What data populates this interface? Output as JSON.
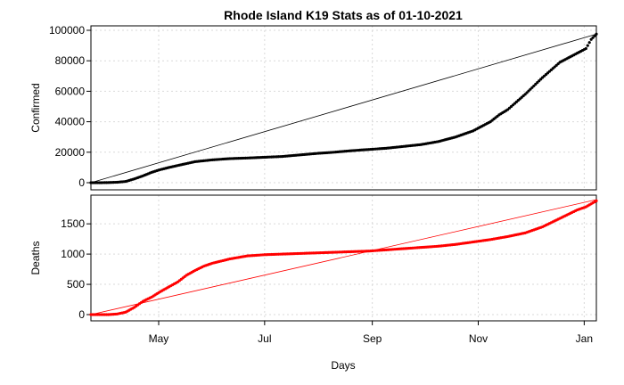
{
  "title": "Rhode Island K19 Stats as of 01-10-2021",
  "xlabel": "Days",
  "chart_data": {
    "type": "scatter",
    "title": "Rhode Island K19 Stats as of 01-10-2021",
    "xlabel": "Days",
    "x_ticks": [
      {
        "label": "May",
        "day": 39
      },
      {
        "label": "Jul",
        "day": 100
      },
      {
        "label": "Sep",
        "day": 162
      },
      {
        "label": "Nov",
        "day": 223
      },
      {
        "label": "Jan",
        "day": 284
      }
    ],
    "xlim": [
      0,
      291
    ],
    "panels": [
      {
        "ylabel": "Confirmed",
        "ylim": [
          0,
          100000
        ],
        "y_ticks": [
          0,
          20000,
          40000,
          60000,
          80000,
          100000
        ],
        "color": "#000000",
        "trend_line": {
          "from": [
            0,
            0
          ],
          "to": [
            291,
            97500
          ]
        },
        "series": {
          "name": "Confirmed",
          "x": [
            0,
            5,
            10,
            15,
            20,
            25,
            30,
            35,
            40,
            45,
            50,
            60,
            70,
            80,
            90,
            100,
            110,
            120,
            130,
            140,
            150,
            160,
            170,
            180,
            190,
            200,
            210,
            215,
            220,
            225,
            230,
            235,
            240,
            245,
            250,
            255,
            260,
            265,
            270,
            275,
            280,
            285,
            288,
            291
          ],
          "y": [
            0,
            0,
            100,
            300,
            800,
            2500,
            4500,
            6800,
            8600,
            10000,
            11300,
            13800,
            15000,
            15800,
            16200,
            16700,
            17200,
            18200,
            19200,
            20000,
            21000,
            21800,
            22600,
            23800,
            25000,
            27000,
            30000,
            32000,
            34000,
            37000,
            40000,
            44500,
            48000,
            53000,
            58000,
            63500,
            69000,
            74000,
            79000,
            82000,
            85000,
            88000,
            94000,
            97500
          ]
        }
      },
      {
        "ylabel": "Deaths",
        "ylim": [
          0,
          1900
        ],
        "y_ticks": [
          0,
          500,
          1000,
          1500
        ],
        "color": "#ff0000",
        "trend_line": {
          "from": [
            0,
            0
          ],
          "to": [
            291,
            1900
          ]
        },
        "series": {
          "name": "Deaths",
          "x": [
            0,
            10,
            15,
            20,
            25,
            30,
            35,
            40,
            45,
            50,
            55,
            60,
            65,
            70,
            80,
            90,
            100,
            110,
            120,
            130,
            140,
            150,
            160,
            170,
            180,
            190,
            200,
            210,
            220,
            230,
            240,
            250,
            255,
            260,
            265,
            270,
            275,
            280,
            285,
            291
          ],
          "y": [
            0,
            0,
            10,
            40,
            120,
            220,
            290,
            380,
            460,
            540,
            650,
            730,
            800,
            850,
            920,
            970,
            990,
            1000,
            1010,
            1020,
            1030,
            1040,
            1050,
            1070,
            1090,
            1110,
            1130,
            1160,
            1200,
            1240,
            1290,
            1350,
            1400,
            1450,
            1520,
            1590,
            1660,
            1730,
            1780,
            1880
          ]
        }
      }
    ]
  }
}
